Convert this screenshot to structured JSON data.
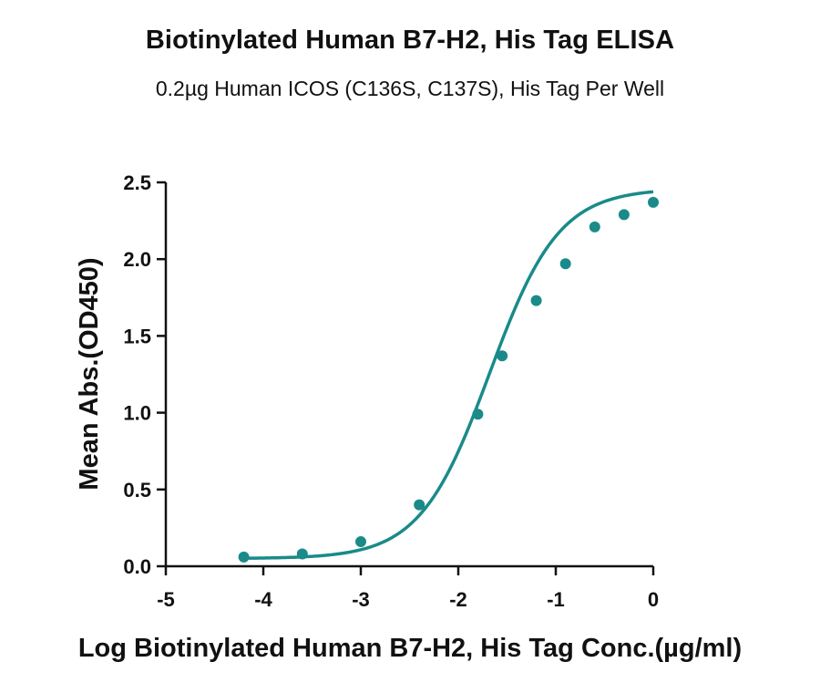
{
  "chart_data": {
    "type": "scatter",
    "title": "Biotinylated Human B7-H2, His Tag ELISA",
    "subtitle": "0.2µg Human ICOS (C136S, C137S), His Tag Per Well",
    "xlabel": "Log Biotinylated Human B7-H2, His Tag Conc.(µg/ml)",
    "ylabel": "Mean Abs.(OD450)",
    "xlim": [
      -5,
      0
    ],
    "ylim": [
      0,
      2.5
    ],
    "x_ticks": [
      "-5",
      "-4",
      "-3",
      "-2",
      "-1",
      "0"
    ],
    "y_ticks": [
      "0.0",
      "0.5",
      "1.0",
      "1.5",
      "2.0",
      "2.5"
    ],
    "grid": false,
    "series": [
      {
        "color": "#1a8a8a",
        "x": [
          -4.2,
          -3.6,
          -3.0,
          -2.4,
          -1.8,
          -1.55,
          -1.2,
          -0.9,
          -0.6,
          -0.3,
          0.0
        ],
        "y": [
          0.06,
          0.08,
          0.16,
          0.4,
          0.99,
          1.37,
          1.73,
          1.97,
          2.21,
          2.29,
          2.37
        ],
        "fit": {
          "model": "4PL",
          "bottom": 0.05,
          "top": 2.46,
          "log_ec50": -1.68,
          "hill": 1.22
        }
      }
    ]
  }
}
